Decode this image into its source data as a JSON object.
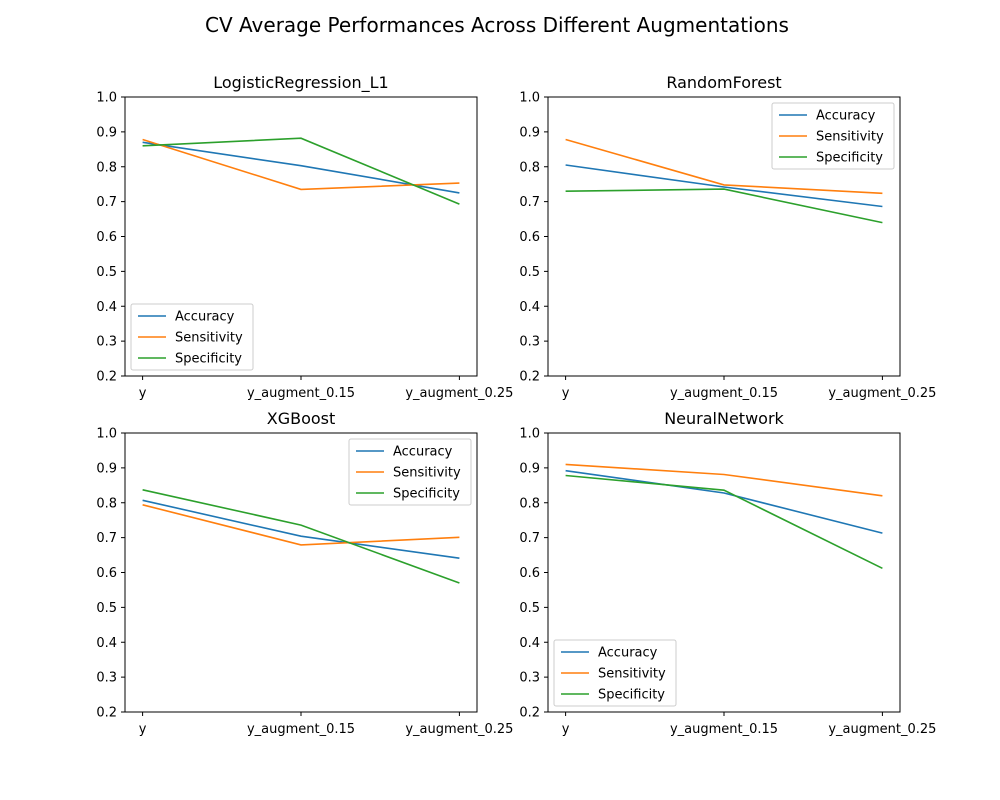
{
  "figure_title": "CV Average Performances Across Different Augmentations",
  "chart_data": [
    {
      "type": "line",
      "title": "LogisticRegression_L1",
      "categories": [
        "y",
        "y_augment_0.15",
        "y_augment_0.25"
      ],
      "ylim": [
        0.2,
        1.0
      ],
      "yticks": [
        0.2,
        0.3,
        0.4,
        0.5,
        0.6,
        0.7,
        0.8,
        0.9,
        1.0
      ],
      "legend": "lower-left",
      "grid": false,
      "series": [
        {
          "name": "Accuracy",
          "color": "#1f77b4",
          "values": [
            0.87,
            0.803,
            0.725
          ]
        },
        {
          "name": "Sensitivity",
          "color": "#ff7f0e",
          "values": [
            0.878,
            0.735,
            0.753
          ]
        },
        {
          "name": "Specificity",
          "color": "#2ca02c",
          "values": [
            0.86,
            0.882,
            0.693
          ]
        }
      ]
    },
    {
      "type": "line",
      "title": "RandomForest",
      "categories": [
        "y",
        "y_augment_0.15",
        "y_augment_0.25"
      ],
      "ylim": [
        0.2,
        1.0
      ],
      "yticks": [
        0.2,
        0.3,
        0.4,
        0.5,
        0.6,
        0.7,
        0.8,
        0.9,
        1.0
      ],
      "legend": "upper-right",
      "grid": false,
      "series": [
        {
          "name": "Accuracy",
          "color": "#1f77b4",
          "values": [
            0.805,
            0.742,
            0.686
          ]
        },
        {
          "name": "Sensitivity",
          "color": "#ff7f0e",
          "values": [
            0.878,
            0.748,
            0.724
          ]
        },
        {
          "name": "Specificity",
          "color": "#2ca02c",
          "values": [
            0.73,
            0.736,
            0.64
          ]
        }
      ]
    },
    {
      "type": "line",
      "title": "XGBoost",
      "categories": [
        "y",
        "y_augment_0.15",
        "y_augment_0.25"
      ],
      "ylim": [
        0.2,
        1.0
      ],
      "yticks": [
        0.2,
        0.3,
        0.4,
        0.5,
        0.6,
        0.7,
        0.8,
        0.9,
        1.0
      ],
      "legend": "upper-right",
      "grid": false,
      "series": [
        {
          "name": "Accuracy",
          "color": "#1f77b4",
          "values": [
            0.807,
            0.704,
            0.641
          ]
        },
        {
          "name": "Sensitivity",
          "color": "#ff7f0e",
          "values": [
            0.794,
            0.679,
            0.701
          ]
        },
        {
          "name": "Specificity",
          "color": "#2ca02c",
          "values": [
            0.837,
            0.736,
            0.57
          ]
        }
      ]
    },
    {
      "type": "line",
      "title": "NeuralNetwork",
      "categories": [
        "y",
        "y_augment_0.15",
        "y_augment_0.25"
      ],
      "ylim": [
        0.2,
        1.0
      ],
      "yticks": [
        0.2,
        0.3,
        0.4,
        0.5,
        0.6,
        0.7,
        0.8,
        0.9,
        1.0
      ],
      "legend": "lower-left",
      "grid": false,
      "series": [
        {
          "name": "Accuracy",
          "color": "#1f77b4",
          "values": [
            0.892,
            0.828,
            0.713
          ]
        },
        {
          "name": "Sensitivity",
          "color": "#ff7f0e",
          "values": [
            0.91,
            0.881,
            0.82
          ]
        },
        {
          "name": "Specificity",
          "color": "#2ca02c",
          "values": [
            0.878,
            0.836,
            0.612
          ]
        }
      ]
    }
  ]
}
